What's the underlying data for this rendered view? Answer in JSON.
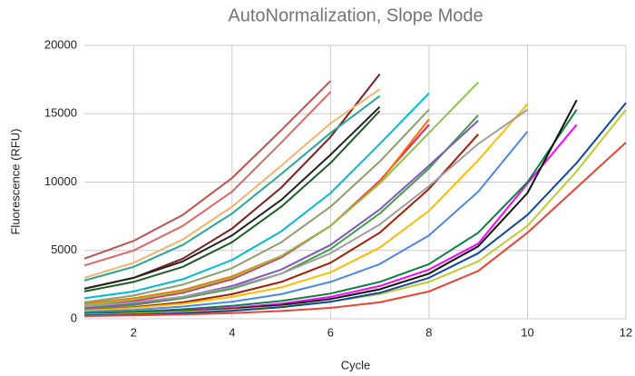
{
  "chart_data": {
    "type": "line",
    "title": "AutoNormalization, Slope Mode",
    "x_label": "Cycle",
    "y_label": "Fluorescence (RFU)",
    "x": [
      1,
      2,
      3,
      4,
      5,
      6,
      7,
      8,
      9,
      10,
      11,
      12
    ],
    "xlim": [
      1,
      12
    ],
    "xticks": [
      2,
      4,
      6,
      8,
      10,
      12
    ],
    "ylim": [
      0,
      20000
    ],
    "yticks": [
      0,
      5000,
      10000,
      15000,
      20000
    ],
    "grid": true,
    "series": [
      {
        "color": "#c0504d",
        "values": [
          4400,
          5700,
          7600,
          10300,
          13800,
          17400,
          null,
          null,
          null,
          null,
          null,
          null
        ]
      },
      {
        "color": "#e06666",
        "values": [
          3900,
          5000,
          6800,
          9300,
          12900,
          16600,
          null,
          null,
          null,
          null,
          null,
          null
        ]
      },
      {
        "color": "#7b1f1f",
        "values": [
          2200,
          3000,
          4400,
          6600,
          9600,
          13300,
          17900,
          null,
          null,
          null,
          null,
          null
        ]
      },
      {
        "color": "#26a69a",
        "values": [
          2800,
          3800,
          5400,
          7700,
          10600,
          13600,
          16300,
          null,
          null,
          null,
          null,
          null
        ]
      },
      {
        "color": "#1b5e20",
        "values": [
          2000,
          2700,
          3800,
          5600,
          8200,
          11400,
          15200,
          null,
          null,
          null,
          null,
          null
        ]
      },
      {
        "color": "#f6b26b",
        "values": [
          3000,
          4100,
          5800,
          8200,
          11200,
          14300,
          16800,
          null,
          null,
          null,
          null,
          null
        ]
      },
      {
        "color": "#222222",
        "values": [
          2200,
          3000,
          4200,
          6100,
          8700,
          12000,
          15500,
          null,
          null,
          null,
          null,
          null
        ]
      },
      {
        "color": "#00bcd4",
        "values": [
          1500,
          2000,
          2900,
          4300,
          6400,
          9200,
          12800,
          16500,
          null,
          null,
          null,
          null
        ]
      },
      {
        "color": "#8d9f6f",
        "values": [
          1200,
          1700,
          2500,
          3700,
          5600,
          8200,
          11500,
          15300,
          null,
          null,
          null,
          null
        ]
      },
      {
        "color": "#e91e63",
        "values": [
          900,
          1300,
          1900,
          2900,
          4500,
          6800,
          10100,
          14200,
          null,
          null,
          null,
          null
        ]
      },
      {
        "color": "#ff6d01",
        "values": [
          1100,
          1500,
          2100,
          3100,
          4600,
          6800,
          10000,
          14600,
          null,
          null,
          null,
          null
        ]
      },
      {
        "color": "#43a047",
        "values": [
          700,
          1000,
          1500,
          2200,
          3300,
          5100,
          7700,
          11000,
          14900,
          null,
          null,
          null
        ]
      },
      {
        "color": "#8bc34a",
        "values": [
          1000,
          1400,
          2000,
          3000,
          4600,
          6800,
          9900,
          13600,
          17300,
          null,
          null,
          null
        ]
      },
      {
        "color": "#7e57c2",
        "values": [
          800,
          1100,
          1600,
          2400,
          3600,
          5400,
          8000,
          11200,
          14500,
          null,
          null,
          null
        ]
      },
      {
        "color": "#a61c00",
        "values": [
          600,
          850,
          1200,
          1800,
          2700,
          4100,
          6300,
          9500,
          13500,
          null,
          null,
          null
        ]
      },
      {
        "color": "#fbbc04",
        "values": [
          600,
          800,
          1100,
          1600,
          2300,
          3400,
          5200,
          7900,
          11600,
          15700,
          null,
          null
        ]
      },
      {
        "color": "#9e9e9e",
        "values": [
          900,
          1200,
          1600,
          2300,
          3300,
          4800,
          6900,
          9700,
          12800,
          15300,
          null,
          null
        ]
      },
      {
        "color": "#4a86e8",
        "values": [
          500,
          650,
          900,
          1250,
          1800,
          2700,
          4000,
          6100,
          9300,
          13700,
          null,
          null
        ]
      },
      {
        "color": "#ff00ff",
        "values": [
          350,
          450,
          600,
          800,
          1100,
          1600,
          2400,
          3600,
          5500,
          9900,
          14200,
          null
        ]
      },
      {
        "color": "#0b8043",
        "values": [
          400,
          520,
          700,
          950,
          1300,
          1850,
          2700,
          4000,
          6300,
          10000,
          15300,
          null
        ]
      },
      {
        "color": "#111111",
        "values": [
          300,
          400,
          530,
          720,
          1000,
          1450,
          2150,
          3300,
          5300,
          9200,
          16000,
          null
        ]
      },
      {
        "color": "#c0ca33",
        "values": [
          300,
          380,
          500,
          660,
          900,
          1250,
          1800,
          2700,
          4200,
          6800,
          10800,
          15300
        ]
      },
      {
        "color": "#0d47a1",
        "values": [
          250,
          320,
          420,
          580,
          850,
          1250,
          1900,
          3000,
          4800,
          7600,
          11400,
          15800
        ]
      },
      {
        "color": "#ea4335",
        "values": [
          200,
          250,
          320,
          420,
          570,
          800,
          1200,
          2000,
          3500,
          6300,
          9600,
          12900
        ]
      }
    ]
  }
}
